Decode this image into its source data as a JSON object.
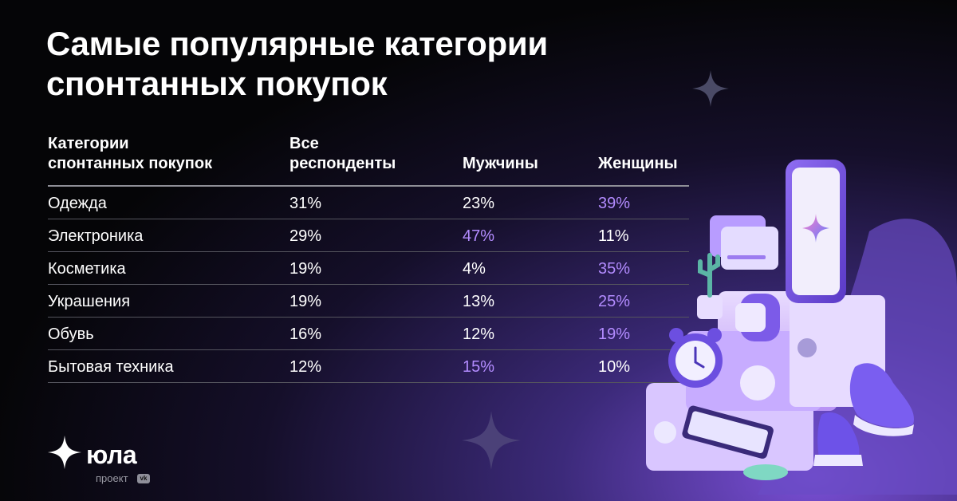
{
  "title": {
    "line1": "Самые популярные категории",
    "line2": "спонтанных покупок"
  },
  "table": {
    "headers": {
      "category_line1": "Категории",
      "category_line2": "спонтанных покупок",
      "all_line1": "Все",
      "all_line2": "респонденты",
      "men": "Мужчины",
      "women": "Женщины"
    },
    "rows": [
      {
        "category": "Одежда",
        "all": "31%",
        "men": "23%",
        "women": "39%",
        "highlight": "women"
      },
      {
        "category": "Электроника",
        "all": "29%",
        "men": "47%",
        "women": "11%",
        "highlight": "men"
      },
      {
        "category": "Косметика",
        "all": "19%",
        "men": "4%",
        "women": "35%",
        "highlight": "women"
      },
      {
        "category": "Украшения",
        "all": "19%",
        "men": "13%",
        "women": "25%",
        "highlight": "women"
      },
      {
        "category": "Обувь",
        "all": "16%",
        "men": "12%",
        "women": "19%",
        "highlight": "women"
      },
      {
        "category": "Бытовая техника",
        "all": "12%",
        "men": "15%",
        "women": "10%",
        "highlight": "men"
      }
    ]
  },
  "logo": {
    "name": "юла",
    "sub": "проект",
    "badge": "vk"
  },
  "colors": {
    "highlight": "#b38cff",
    "background": "#050507",
    "accent": "#8b5cf6"
  }
}
